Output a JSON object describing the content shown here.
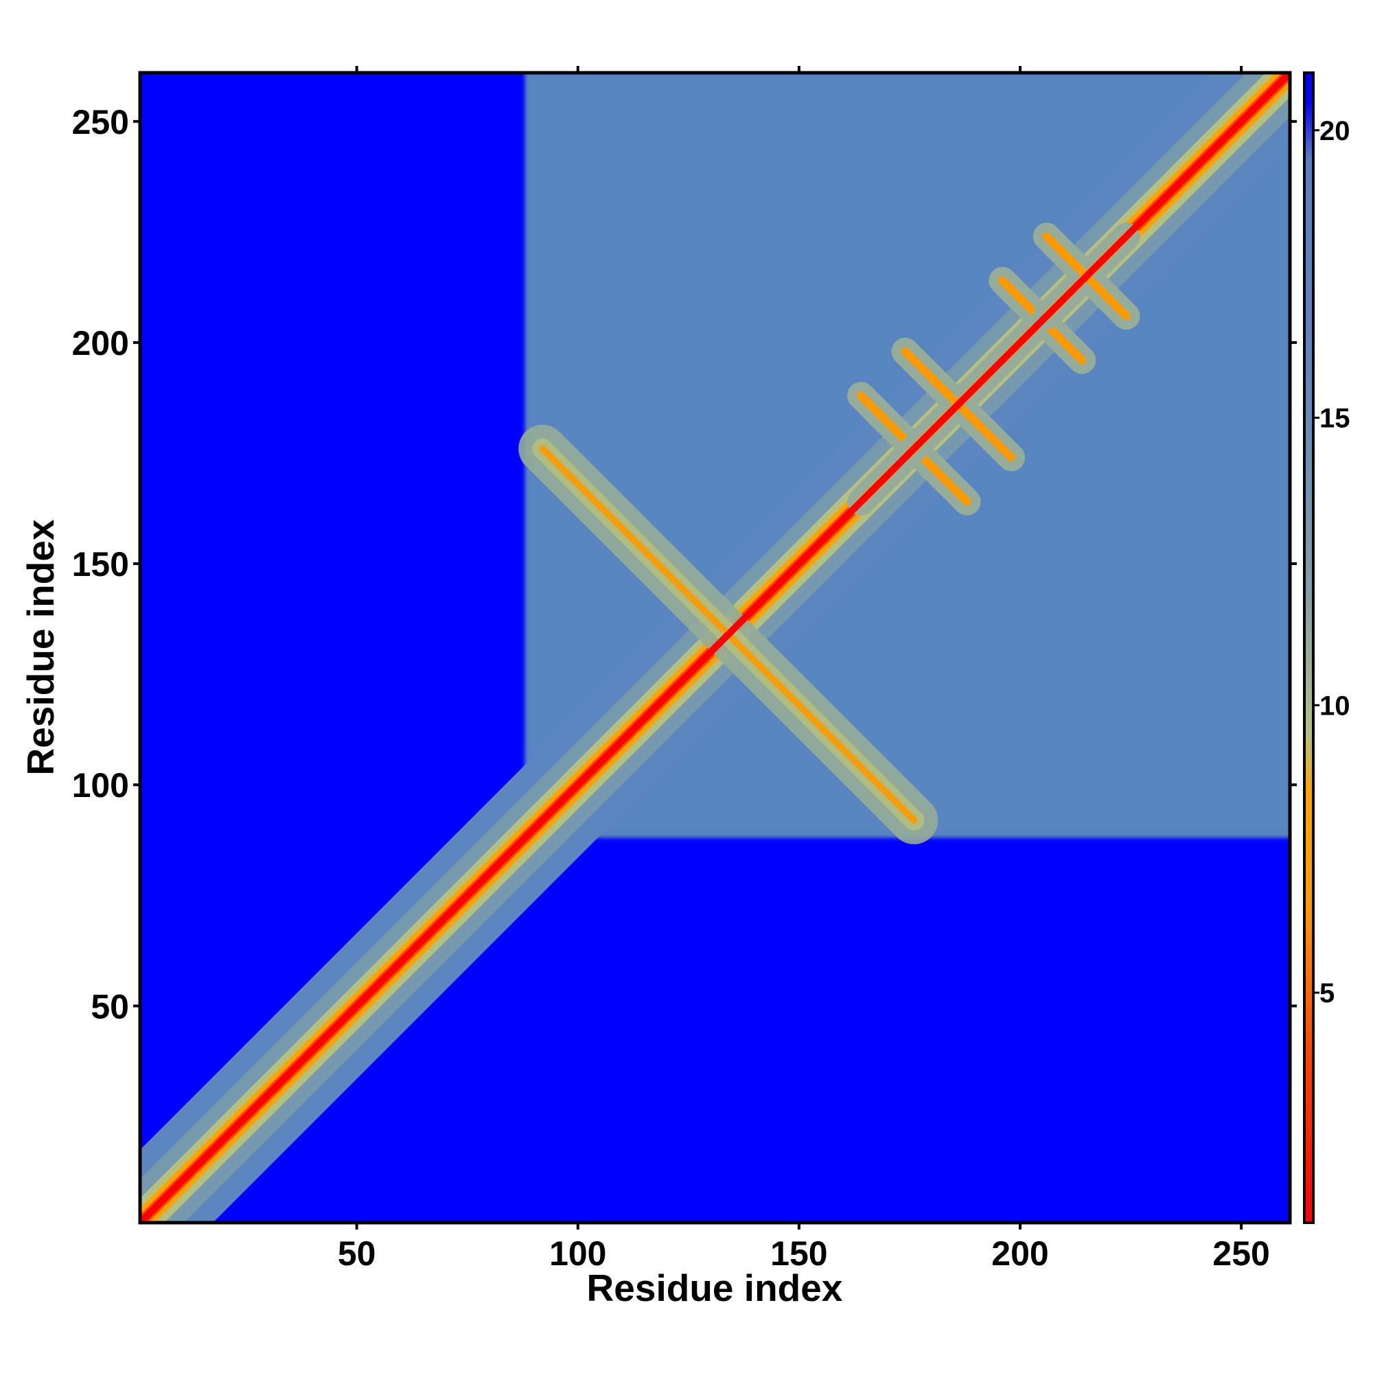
{
  "chart_data": {
    "type": "heatmap",
    "title": "",
    "xlabel": "Residue index",
    "ylabel": "Residue index",
    "xlim": [
      1,
      261
    ],
    "ylim": [
      1,
      261
    ],
    "x_ticks": [
      50,
      100,
      150,
      200,
      250
    ],
    "y_ticks": [
      50,
      100,
      150,
      200,
      250
    ],
    "x_tick_labels": [
      "50",
      "100",
      "150",
      "200",
      "250"
    ],
    "y_tick_labels": [
      "50",
      "100",
      "150",
      "200",
      "250"
    ],
    "grid": false,
    "legend": "none",
    "colorbar": {
      "placement": "right",
      "range": [
        1,
        21
      ],
      "ticks": [
        5,
        10,
        15,
        20
      ],
      "tick_labels": [
        "5",
        "10",
        "15",
        "20"
      ],
      "stops": [
        {
          "value": 1,
          "color": "#ff0000"
        },
        {
          "value": 4,
          "color": "#ff4500"
        },
        {
          "value": 6.5,
          "color": "#ff9900"
        },
        {
          "value": 8.5,
          "color": "#ffa500"
        },
        {
          "value": 9.5,
          "color": "#b4c080"
        },
        {
          "value": 12,
          "color": "#7f9faa"
        },
        {
          "value": 16,
          "color": "#5b86bf"
        },
        {
          "value": 19.5,
          "color": "#5580c4"
        },
        {
          "value": 20.5,
          "color": "#0000ff"
        },
        {
          "value": 21,
          "color": "#0000ff"
        }
      ]
    },
    "cell_unit": "residue distance",
    "contact_features": [
      {
        "kind": "diagonal",
        "from": 1,
        "to": 261
      },
      {
        "kind": "antiparallel",
        "center": [
          135,
          135
        ],
        "from": [
          92,
          176
        ],
        "to": [
          176,
          92
        ]
      },
      {
        "kind": "cross",
        "center": [
          176,
          176
        ],
        "half_width": 12
      },
      {
        "kind": "cross",
        "center": [
          186,
          186
        ],
        "half_width": 12
      },
      {
        "kind": "cross",
        "center": [
          205,
          205
        ],
        "half_width": 9
      },
      {
        "kind": "cross",
        "center": [
          215,
          215
        ],
        "half_width": 9
      }
    ],
    "domain_blocks": [
      {
        "x": [
          88,
          262
        ],
        "y": [
          88,
          262
        ],
        "level": 17
      },
      {
        "x": [
          1,
          75
        ],
        "y": [
          1,
          75
        ],
        "level": "near-diagonal only"
      }
    ]
  }
}
